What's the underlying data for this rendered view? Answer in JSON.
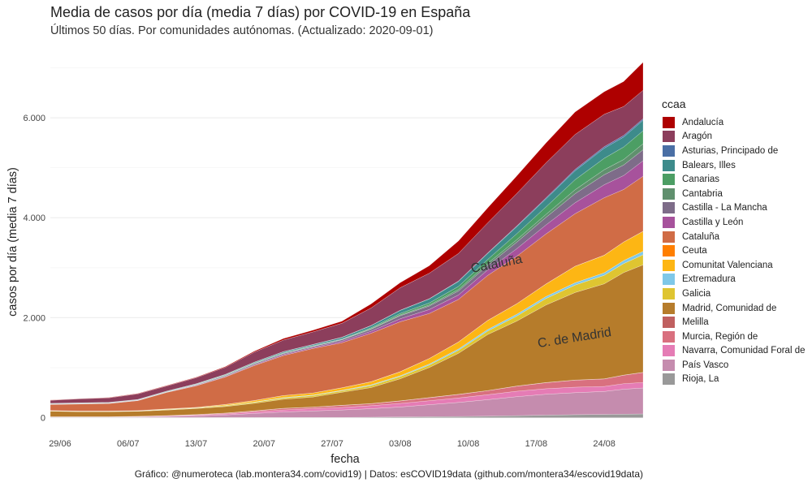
{
  "chart_data": {
    "type": "area",
    "stacked": true,
    "title": "Media de casos por día (media 7 días) por COVID-19 en España",
    "subtitle": "Últimos 50 días. Por comunidades autónomas. (Actualizado: 2020-09-01)",
    "xlabel": "fecha",
    "ylabel": "casos por día (media 7 días)",
    "legend_title": "ccaa",
    "legend_position": "right",
    "caption": "Gráfico: @numeroteca (lab.montera34.com/covid19) | Datos: esCOVID19data (github.com/montera34/escovid19data)",
    "grid": true,
    "x_start": "2020-06-28",
    "x_end": "2020-08-28",
    "x_ticks": [
      "29/06",
      "06/07",
      "13/07",
      "20/07",
      "27/07",
      "03/08",
      "10/08",
      "17/08",
      "24/08"
    ],
    "y_ticks": [
      0,
      2000,
      4000,
      6000
    ],
    "y_tick_labels": [
      "0",
      "2.000",
      "4.000",
      "6.000"
    ],
    "ylim": [
      -250,
      7300
    ],
    "annotations": [
      {
        "text": "Cataluña",
        "date": "2020-08-13",
        "y": 3000,
        "angle": -11
      },
      {
        "text": "C. de Madrid",
        "date": "2020-08-21",
        "y": 1520,
        "angle": -9
      }
    ],
    "x": [
      "2020-06-28",
      "2020-07-01",
      "2020-07-04",
      "2020-07-07",
      "2020-07-10",
      "2020-07-13",
      "2020-07-16",
      "2020-07-19",
      "2020-07-22",
      "2020-07-25",
      "2020-07-28",
      "2020-07-31",
      "2020-08-03",
      "2020-08-06",
      "2020-08-09",
      "2020-08-12",
      "2020-08-15",
      "2020-08-18",
      "2020-08-21",
      "2020-08-24",
      "2020-08-26",
      "2020-08-28"
    ],
    "series": [
      {
        "name": "Rioja, La",
        "color": "#999999",
        "values": [
          5,
          5,
          5,
          5,
          5,
          5,
          5,
          5,
          5,
          5,
          5,
          10,
          15,
          20,
          25,
          30,
          40,
          50,
          60,
          65,
          70,
          75
        ]
      },
      {
        "name": "País Vasco",
        "color": "#c58cae",
        "values": [
          5,
          5,
          5,
          10,
          20,
          30,
          50,
          80,
          110,
          130,
          150,
          170,
          200,
          240,
          280,
          330,
          380,
          420,
          440,
          460,
          500,
          520
        ]
      },
      {
        "name": "Navarra, Comunidad Foral de",
        "color": "#e57cb5",
        "values": [
          2,
          2,
          2,
          5,
          10,
          15,
          20,
          30,
          40,
          45,
          50,
          60,
          70,
          80,
          90,
          100,
          110,
          110,
          110,
          100,
          110,
          110
        ]
      },
      {
        "name": "Murcia, Región de",
        "color": "#d9707f",
        "values": [
          5,
          5,
          5,
          5,
          5,
          10,
          15,
          20,
          30,
          30,
          40,
          40,
          50,
          60,
          70,
          80,
          100,
          120,
          140,
          150,
          170,
          200
        ]
      },
      {
        "name": "Melilla",
        "color": "#c06060",
        "values": [
          3,
          3,
          3,
          3,
          3,
          3,
          3,
          3,
          3,
          3,
          3,
          3,
          3,
          3,
          3,
          3,
          3,
          3,
          3,
          3,
          3,
          3
        ]
      },
      {
        "name": "Madrid, Comunidad de",
        "color": "#b67c2b",
        "values": [
          110,
          100,
          100,
          100,
          110,
          120,
          130,
          150,
          180,
          200,
          260,
          320,
          440,
          600,
          820,
          1120,
          1300,
          1550,
          1750,
          1900,
          2050,
          2150
        ]
      },
      {
        "name": "Galicia",
        "color": "#dfc531",
        "values": [
          5,
          5,
          5,
          5,
          10,
          10,
          15,
          20,
          25,
          30,
          30,
          40,
          45,
          50,
          60,
          70,
          100,
          130,
          150,
          170,
          180,
          200
        ]
      },
      {
        "name": "Extremadura",
        "color": "#7fc8e8",
        "values": [
          2,
          2,
          2,
          2,
          2,
          3,
          5,
          5,
          10,
          10,
          10,
          15,
          15,
          20,
          25,
          30,
          35,
          40,
          45,
          50,
          60,
          70
        ]
      },
      {
        "name": "Comunitat Valenciana",
        "color": "#fdb614",
        "values": [
          5,
          5,
          5,
          5,
          10,
          10,
          20,
          30,
          40,
          40,
          50,
          60,
          80,
          110,
          140,
          180,
          210,
          250,
          330,
          350,
          370,
          400
        ]
      },
      {
        "name": "Ceuta",
        "color": "#ff7f00",
        "values": [
          1,
          1,
          1,
          1,
          1,
          1,
          1,
          1,
          1,
          1,
          1,
          1,
          2,
          2,
          2,
          2,
          2,
          2,
          2,
          2,
          2,
          2
        ]
      },
      {
        "name": "Cataluña",
        "color": "#d06c46",
        "values": [
          120,
          140,
          150,
          200,
          330,
          430,
          550,
          700,
          800,
          890,
          900,
          970,
          1000,
          900,
          850,
          900,
          950,
          1000,
          1050,
          1150,
          1050,
          1100
        ]
      },
      {
        "name": "Castilla y León",
        "color": "#a7529c",
        "values": [
          5,
          5,
          5,
          5,
          5,
          10,
          10,
          15,
          20,
          20,
          30,
          40,
          60,
          80,
          90,
          110,
          150,
          180,
          220,
          260,
          280,
          310
        ]
      },
      {
        "name": "Castilla - La Mancha",
        "color": "#7e6c89",
        "values": [
          5,
          5,
          5,
          5,
          5,
          10,
          15,
          20,
          20,
          20,
          30,
          40,
          60,
          70,
          80,
          90,
          130,
          150,
          180,
          200,
          210,
          220
        ]
      },
      {
        "name": "Cantabria",
        "color": "#60906e",
        "values": [
          2,
          2,
          2,
          2,
          2,
          5,
          5,
          5,
          5,
          5,
          5,
          10,
          15,
          20,
          30,
          40,
          50,
          60,
          80,
          100,
          110,
          120
        ]
      },
      {
        "name": "Canarias",
        "color": "#4c9e64",
        "values": [
          5,
          5,
          5,
          5,
          5,
          5,
          10,
          10,
          10,
          10,
          10,
          20,
          30,
          40,
          60,
          80,
          120,
          150,
          200,
          230,
          250,
          260
        ]
      },
      {
        "name": "Balears, Illes",
        "color": "#3d8b8b",
        "values": [
          5,
          5,
          5,
          5,
          10,
          10,
          10,
          15,
          20,
          20,
          30,
          40,
          60,
          80,
          100,
          120,
          140,
          160,
          180,
          200,
          200,
          210
        ]
      },
      {
        "name": "Asturias, Principado de",
        "color": "#4a6fa5",
        "values": [
          2,
          2,
          2,
          2,
          2,
          2,
          3,
          3,
          5,
          5,
          5,
          5,
          5,
          5,
          10,
          10,
          15,
          20,
          25,
          30,
          30,
          30
        ]
      },
      {
        "name": "Aragón",
        "color": "#8c3e5c",
        "values": [
          60,
          80,
          90,
          110,
          100,
          120,
          140,
          200,
          230,
          250,
          280,
          350,
          450,
          510,
          550,
          600,
          650,
          700,
          700,
          650,
          580,
          570
        ]
      },
      {
        "name": "Andalucía",
        "color": "#ae0000",
        "values": [
          5,
          5,
          5,
          10,
          10,
          10,
          15,
          20,
          30,
          35,
          40,
          80,
          100,
          150,
          250,
          300,
          350,
          400,
          450,
          450,
          500,
          560
        ]
      }
    ]
  }
}
